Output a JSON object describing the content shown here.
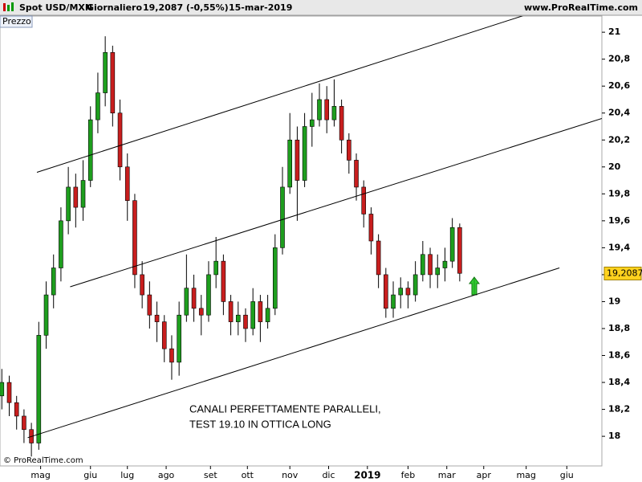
{
  "chart_data": {
    "type": "candlestick",
    "title": "Spot USD/MXN",
    "subtitle": "Giornaliero",
    "last_quote": "19,2087 (-0,55%)",
    "date": "15-mar-2019",
    "source": "www.ProRealTime.com",
    "panel_label": "Prezzo",
    "copyright": "© ProRealTime.com",
    "annotations": [
      "CANALI PERFETTAMENTE PARALLELI,",
      "TEST 19.10 IN OTTICA LONG"
    ],
    "up_color": "#1e9e1e",
    "down_color": "#c81e1e",
    "x": [
      1,
      5,
      9,
      13,
      17,
      21,
      25,
      29,
      33,
      37,
      41,
      45,
      49,
      53,
      57,
      61,
      65,
      69,
      73,
      77,
      81,
      85,
      89,
      93,
      97,
      101,
      105,
      109,
      113,
      117,
      121,
      125,
      129,
      133,
      137,
      141,
      145,
      149,
      153,
      157,
      161,
      165,
      169,
      173,
      177,
      181,
      185,
      189,
      193,
      197,
      201,
      205,
      209,
      213,
      217,
      221,
      225,
      229,
      233,
      237,
      241,
      245,
      249
    ],
    "open": [
      18.3,
      18.4,
      18.25,
      18.15,
      18.05,
      17.95,
      18.75,
      19.05,
      19.25,
      19.6,
      19.85,
      19.7,
      19.9,
      20.35,
      20.55,
      20.85,
      20.4,
      20.0,
      19.75,
      19.2,
      19.05,
      18.9,
      18.85,
      18.65,
      18.55,
      18.9,
      19.1,
      18.95,
      18.9,
      19.2,
      19.3,
      19.0,
      18.85,
      18.9,
      18.8,
      19.0,
      18.85,
      18.95,
      19.4,
      19.85,
      20.2,
      19.9,
      20.3,
      20.35,
      20.5,
      20.35,
      20.45,
      20.2,
      20.05,
      19.85,
      19.65,
      19.45,
      19.2,
      18.95,
      19.05,
      19.1,
      19.05,
      19.2,
      19.35,
      19.2,
      19.25,
      19.3,
      19.55
    ],
    "high": [
      18.5,
      18.45,
      18.3,
      18.2,
      18.1,
      18.85,
      19.15,
      19.35,
      19.7,
      20.0,
      19.95,
      20.05,
      20.45,
      20.7,
      20.97,
      20.9,
      20.5,
      20.1,
      19.8,
      19.3,
      19.15,
      19.0,
      18.9,
      18.75,
      19.0,
      19.35,
      19.2,
      19.05,
      19.3,
      19.48,
      19.35,
      19.05,
      19.0,
      18.95,
      19.1,
      19.05,
      19.05,
      19.5,
      20.0,
      20.4,
      20.3,
      20.4,
      20.55,
      20.62,
      20.6,
      20.65,
      20.5,
      20.25,
      20.1,
      19.9,
      19.7,
      19.5,
      19.25,
      19.15,
      19.18,
      19.15,
      19.3,
      19.45,
      19.4,
      19.35,
      19.4,
      19.62,
      19.58
    ],
    "low": [
      18.2,
      18.15,
      18.05,
      17.95,
      17.85,
      17.9,
      18.65,
      18.95,
      19.15,
      19.5,
      19.55,
      19.6,
      19.85,
      20.25,
      20.45,
      20.3,
      19.9,
      19.6,
      19.1,
      18.95,
      18.8,
      18.7,
      18.55,
      18.42,
      18.45,
      18.85,
      18.85,
      18.75,
      18.85,
      19.1,
      18.9,
      18.75,
      18.75,
      18.7,
      18.75,
      18.7,
      18.8,
      18.9,
      19.35,
      19.8,
      19.6,
      19.85,
      20.15,
      20.3,
      20.25,
      20.3,
      20.1,
      19.95,
      19.75,
      19.55,
      19.35,
      19.1,
      18.88,
      18.88,
      18.95,
      18.95,
      19.0,
      19.15,
      19.1,
      19.1,
      19.15,
      19.25,
      19.15
    ],
    "close": [
      18.4,
      18.25,
      18.15,
      18.05,
      17.95,
      18.75,
      19.05,
      19.25,
      19.6,
      19.85,
      19.7,
      19.9,
      20.35,
      20.55,
      20.85,
      20.4,
      20.0,
      19.75,
      19.2,
      19.05,
      18.9,
      18.85,
      18.65,
      18.55,
      18.9,
      19.1,
      18.95,
      18.9,
      19.2,
      19.3,
      19.0,
      18.85,
      18.9,
      18.8,
      19.0,
      18.85,
      18.95,
      19.4,
      19.85,
      20.2,
      19.9,
      20.3,
      20.35,
      20.5,
      20.35,
      20.45,
      20.2,
      20.05,
      19.85,
      19.65,
      19.45,
      19.2,
      18.95,
      19.05,
      19.1,
      19.05,
      19.2,
      19.35,
      19.2,
      19.25,
      19.3,
      19.55,
      19.21
    ],
    "last_price": {
      "value": 19.2087,
      "label": "19,2087"
    },
    "trendlines": [
      {
        "x": [
          20,
          285
        ],
        "y": [
          19.96,
          21.13
        ]
      },
      {
        "x": [
          38,
          326
        ],
        "y": [
          19.11,
          20.36
        ]
      },
      {
        "x": [
          15,
          303
        ],
        "y": [
          17.99,
          19.25
        ]
      }
    ],
    "xlim": [
      0,
      326
    ],
    "ylim": [
      17.78,
      21.12
    ],
    "xticks": [
      {
        "value": 22,
        "label": "mag"
      },
      {
        "value": 49,
        "label": "giu"
      },
      {
        "value": 69,
        "label": "lug"
      },
      {
        "value": 90,
        "label": "ago"
      },
      {
        "value": 114,
        "label": "set"
      },
      {
        "value": 134,
        "label": "ott"
      },
      {
        "value": 157,
        "label": "nov"
      },
      {
        "value": 178,
        "label": "dic"
      },
      {
        "value": 199,
        "label": "2019"
      },
      {
        "value": 221,
        "label": "feb"
      },
      {
        "value": 242,
        "label": "mar"
      },
      {
        "value": 262,
        "label": "apr"
      },
      {
        "value": 285,
        "label": "mag"
      },
      {
        "value": 307,
        "label": "giu"
      }
    ],
    "yticks": [
      18,
      {
        "value": 18.2,
        "label": "18,2"
      },
      {
        "value": 18.4,
        "label": "18,4"
      },
      {
        "value": 18.6,
        "label": "18,6"
      },
      {
        "value": 18.8,
        "label": "18,8"
      },
      19,
      {
        "value": 19.2,
        "label": "19,2"
      },
      {
        "value": 19.4,
        "label": "19,4"
      },
      {
        "value": 19.6,
        "label": "19,6"
      },
      {
        "value": 19.8,
        "label": "19,8"
      },
      20,
      {
        "value": 20.2,
        "label": "20,2"
      },
      {
        "value": 20.4,
        "label": "20,4"
      },
      {
        "value": 20.6,
        "label": "20,6"
      },
      {
        "value": 20.8,
        "label": "20,8"
      },
      21
    ]
  }
}
